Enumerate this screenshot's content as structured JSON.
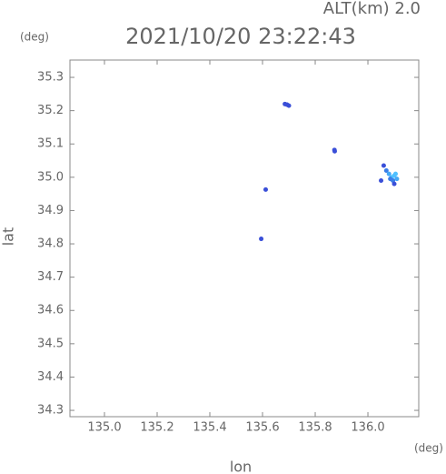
{
  "chart_data": {
    "type": "scatter",
    "title": "2021/10/20 23:22:43",
    "annotation": "ALT(km) 2.0",
    "y_unit": "(deg)",
    "x_unit": "(deg)",
    "xlabel": "lon",
    "ylabel": "lat",
    "x": [
      135.685,
      135.693,
      135.7,
      135.873,
      135.874,
      136.06,
      136.07,
      136.08,
      136.09,
      136.1,
      136.11,
      136.095,
      136.105,
      136.085,
      136.1,
      136.05,
      135.612,
      135.595
    ],
    "values": [
      35.22,
      35.218,
      35.215,
      35.082,
      35.078,
      35.035,
      35.02,
      35.01,
      35.0,
      35.005,
      34.995,
      34.99,
      35.01,
      34.995,
      34.98,
      34.99,
      34.963,
      34.815
    ],
    "colors": [
      "#3a4fd8",
      "#3a4fd8",
      "#3a4fd8",
      "#3a4fd8",
      "#3a4fd8",
      "#3a4fd8",
      "#3a7ee8",
      "#45a8f5",
      "#4fc0ff",
      "#4fc0ff",
      "#45a8f5",
      "#3a7ee8",
      "#4fc0ff",
      "#3a7ee8",
      "#3a4fd8",
      "#3a4fd8",
      "#3a4fd8",
      "#3a4fd8"
    ],
    "xlim": [
      134.869,
      136.193
    ],
    "ylim": [
      34.281,
      35.352
    ],
    "xticks": [
      {
        "value": 135,
        "label": "135.0"
      },
      135.2,
      135.4,
      135.6,
      135.8,
      {
        "value": 136,
        "label": "136.0"
      }
    ],
    "yticks": [
      34.3,
      34.4,
      34.5,
      34.6,
      34.7,
      34.8,
      34.9,
      {
        "value": 35,
        "label": "35.0"
      },
      35.1,
      35.2,
      35.3
    ]
  }
}
